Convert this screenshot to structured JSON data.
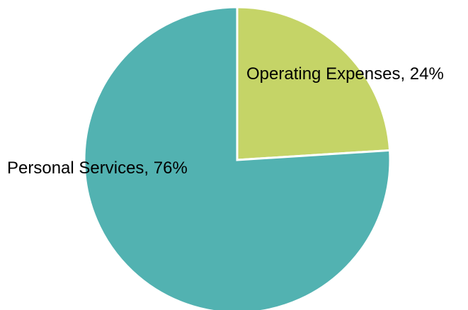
{
  "chart_data": {
    "type": "pie",
    "title": "",
    "slices": [
      {
        "label": "Operating Expenses",
        "value": 24,
        "color": "#C5D467",
        "display": "Operating Expenses, 24%"
      },
      {
        "label": "Personal Services",
        "value": 76,
        "color": "#52B2B1",
        "display": "Personal Services, 76%"
      }
    ],
    "start_direction": "12 o'clock",
    "direction": "clockwise",
    "slice_border_color": "#FFFFFF"
  }
}
